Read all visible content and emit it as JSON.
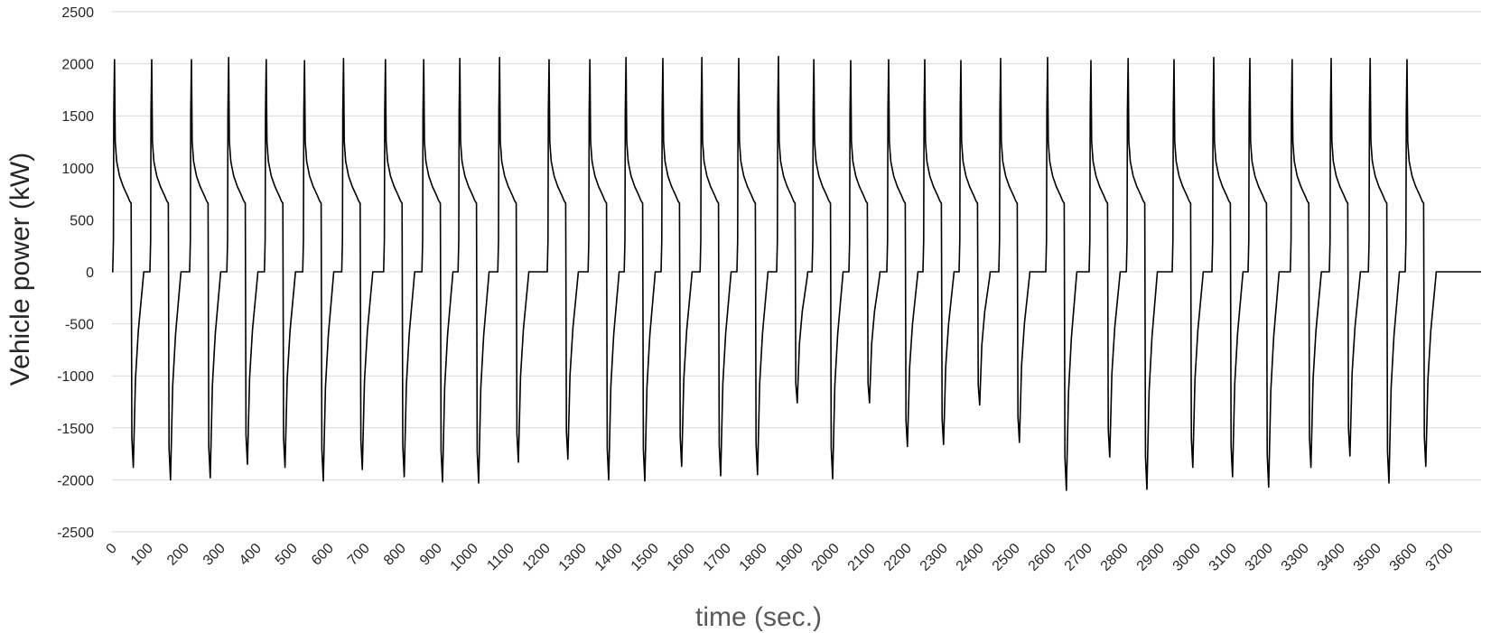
{
  "chart_data": {
    "type": "line",
    "title": "",
    "xlabel": "time (sec.)",
    "ylabel": "Vehicle power (kW)",
    "xlim": [
      0,
      3790
    ],
    "ylim": [
      -2500,
      2500
    ],
    "x_ticks": [
      0,
      100,
      200,
      300,
      400,
      500,
      600,
      700,
      800,
      900,
      1000,
      1100,
      1200,
      1300,
      1400,
      1500,
      1600,
      1700,
      1800,
      1900,
      2000,
      2100,
      2200,
      2300,
      2400,
      2500,
      2600,
      2700,
      2800,
      2900,
      3000,
      3100,
      3200,
      3300,
      3400,
      3500,
      3600,
      3700
    ],
    "y_ticks": [
      2500,
      2000,
      1500,
      1000,
      500,
      0,
      -500,
      -1000,
      -1500,
      -2000,
      -2500
    ],
    "grid": "horizontal",
    "legend": "none",
    "series": [
      {
        "color": "#000000",
        "cycle_starts": [
          0,
          105,
          215,
          318,
          422,
          528,
          636,
          752,
          858,
          958,
          1068,
          1205,
          1318,
          1418,
          1520,
          1628,
          1730,
          1840,
          1938,
          2040,
          2145,
          2245,
          2345,
          2455,
          2585,
          2705,
          2808,
          2935,
          3045,
          3145,
          3262,
          3370,
          3478,
          3580
        ],
        "peak_positive_kW": [
          2040,
          2040,
          2040,
          2060,
          2040,
          2030,
          2050,
          2040,
          2040,
          2050,
          2060,
          2040,
          2040,
          2060,
          2050,
          2060,
          2050,
          2070,
          2040,
          2030,
          2040,
          2040,
          2030,
          2050,
          2060,
          2030,
          2050,
          2040,
          2060,
          2050,
          2040,
          2050,
          2050,
          2040
        ],
        "peak_negative_kW": [
          -1880,
          -2000,
          -1980,
          -1850,
          -1880,
          -2010,
          -1900,
          -1970,
          -2020,
          -2030,
          -1830,
          -1800,
          -2000,
          -2010,
          -1870,
          -1960,
          -1950,
          -1260,
          -1990,
          -1260,
          -1680,
          -1660,
          -1280,
          -1640,
          -2100,
          -1780,
          -2090,
          -1880,
          -1970,
          -2070,
          -1880,
          -1770,
          -2030,
          -1870
        ]
      }
    ]
  }
}
